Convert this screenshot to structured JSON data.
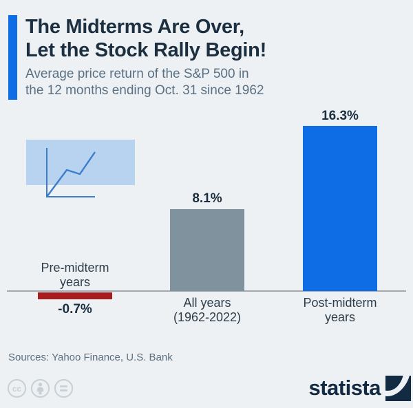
{
  "header": {
    "title_line1": "The Midterms Are Over,",
    "title_line2": "Let the Stock Rally Begin!",
    "subtitle_line1": "Average price return of the S&P 500 in",
    "subtitle_line2": "the 12 months ending Oct. 31 since 1962"
  },
  "chart_data": {
    "type": "bar",
    "title": "The Midterms Are Over, Let the Stock Rally Begin!",
    "subtitle": "Average price return of the S&P 500 in the 12 months ending Oct. 31 since 1962",
    "categories": [
      "Pre-midterm years",
      "All years (1962-2022)",
      "Post-midterm years"
    ],
    "values": [
      -0.7,
      8.1,
      16.3
    ],
    "unit": "%",
    "data_labels": [
      "-0.7%",
      "8.1%",
      "16.3%"
    ],
    "tick_labels": [
      "Pre-midterm\nyears",
      "All years\n(1962-2022)",
      "Post-midterm\nyears"
    ],
    "bar_colors": [
      "#a81c20",
      "#7f929e",
      "#0e6de4"
    ],
    "ylim": [
      -0.7,
      16.3
    ],
    "baseline": 0,
    "grid": false,
    "legend": false
  },
  "footer": {
    "sources": "Sources: Yahoo Finance, U.S. Bank",
    "brand": "statista"
  },
  "colors": {
    "background": "#edf1f4",
    "accent_blue": "#0e6de4",
    "bar_gray": "#7f929e",
    "bar_red": "#a81c20",
    "title_navy": "#1c2f40",
    "subtitle_gray": "#5b7083",
    "axis_gray": "#a3a9ae",
    "icon_fill": "#b8d3f0",
    "icon_line": "#3b7ccd",
    "license_gray": "#c9d1d7",
    "brand_navy": "#132b42"
  }
}
